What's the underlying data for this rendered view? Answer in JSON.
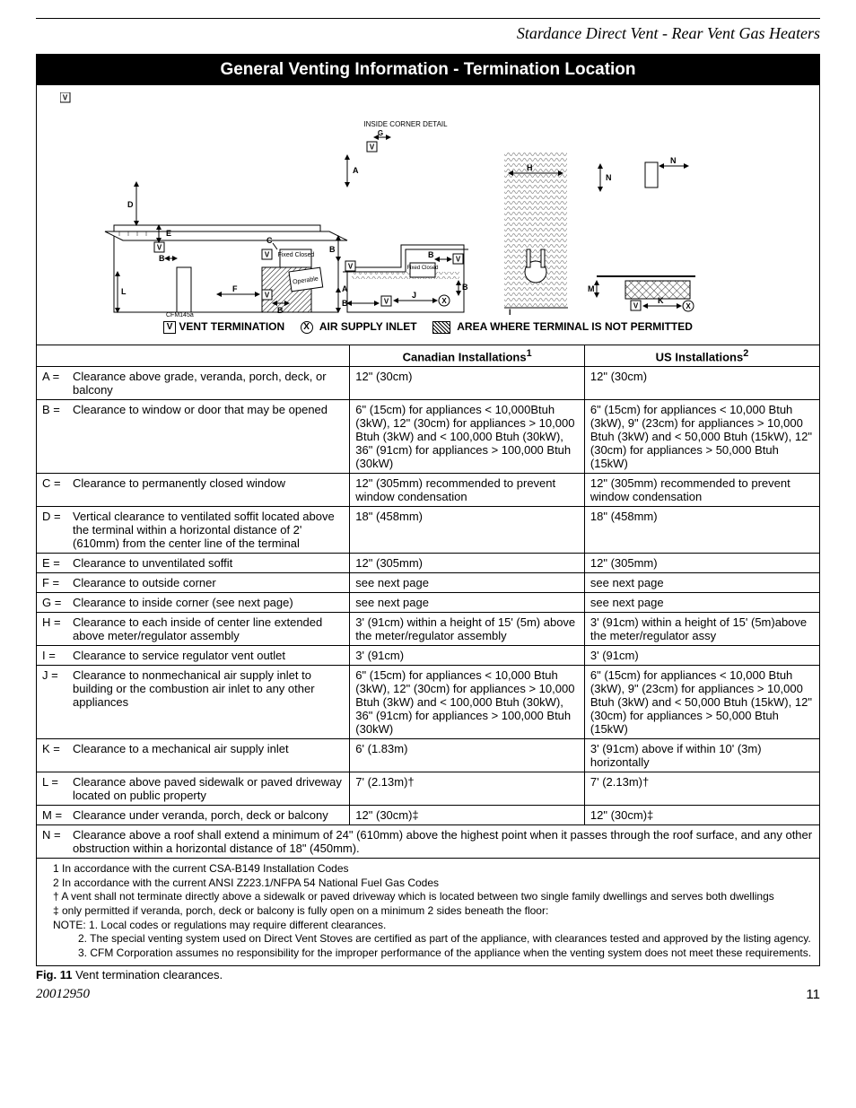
{
  "header": {
    "product_line": "Stardance Direct Vent - Rear Vent Gas Heaters"
  },
  "section": {
    "title": "General Venting Information - Termination Location"
  },
  "diagram": {
    "inside_corner_label": "INSIDE CORNER DETAIL",
    "fixed_closed": "Fixed Closed",
    "operable": "Operable",
    "ref": "CFM145a",
    "letters": {
      "A": "A",
      "B": "B",
      "C": "C",
      "D": "D",
      "E": "E",
      "F": "F",
      "G": "G",
      "H": "H",
      "I": "I",
      "J": "J",
      "K": "K",
      "L": "L",
      "M": "M",
      "N": "N",
      "V": "V",
      "X": "X"
    }
  },
  "legend": {
    "vent_termination": "VENT TERMINATION",
    "air_supply_inlet": "AIR SUPPLY INLET",
    "not_permitted": "AREA WHERE TERMINAL IS NOT PERMITTED"
  },
  "table": {
    "headers": {
      "blank": "",
      "canadian": "Canadian Installations",
      "canadian_sup": "1",
      "us": "US Installations",
      "us_sup": "2"
    },
    "rows": [
      {
        "key": "A =",
        "desc": "Clearance above grade, veranda, porch, deck, or balcony",
        "ca": "12\" (30cm)",
        "us": "12\" (30cm)"
      },
      {
        "key": "B =",
        "desc": "Clearance to window or door that may be opened",
        "ca": "6\" (15cm) for appliances < 10,000Btuh (3kW), 12\" (30cm) for appliances > 10,000 Btuh (3kW) and < 100,000 Btuh (30kW), 36\" (91cm) for appliances > 100,000 Btuh (30kW)",
        "us": "6\" (15cm) for appliances < 10,000 Btuh (3kW), 9\" (23cm) for appliances > 10,000 Btuh (3kW) and < 50,000 Btuh (15kW), 12\" (30cm) for appliances > 50,000 Btuh (15kW)"
      },
      {
        "key": "C =",
        "desc": "Clearance to permanently closed window",
        "ca": "12\" (305mm) recommended to prevent window condensation",
        "us": "12\" (305mm) recommended to prevent window condensation"
      },
      {
        "key": "D =",
        "desc": "Vertical clearance to ventilated soffit located above the terminal within a horizontal distance of 2' (610mm) from the center line of the terminal",
        "ca": "18\" (458mm)",
        "us": "18\" (458mm)"
      },
      {
        "key": "E =",
        "desc": "Clearance to unventilated soffit",
        "ca": "12\" (305mm)",
        "us": "12\" (305mm)"
      },
      {
        "key": "F =",
        "desc": "Clearance to outside corner",
        "ca": "see next page",
        "us": "see next page"
      },
      {
        "key": "G =",
        "desc": "Clearance to inside corner (see next page)",
        "ca": "see next page",
        "us": "see next page"
      },
      {
        "key": "H =",
        "desc": "Clearance to each inside of center line extended above meter/regulator assembly",
        "ca": "3' (91cm) within a height of 15' (5m) above the meter/regulator assembly",
        "us": "3' (91cm) within a height of 15' (5m)above the meter/regulator assy"
      },
      {
        "key": "I  =",
        "desc": "Clearance to service regulator vent outlet",
        "ca": "3' (91cm)",
        "us": "3' (91cm)"
      },
      {
        "key": "J =",
        "desc": "Clearance to nonmechanical air supply inlet to building or the combustion air inlet to any other appliances",
        "ca": "6\" (15cm) for appliances < 10,000 Btuh (3kW), 12\" (30cm) for appliances > 10,000 Btuh (3kW) and < 100,000 Btuh (30kW), 36\" (91cm) for appliances > 100,000 Btuh (30kW)",
        "us": "6\" (15cm) for appliances < 10,000 Btuh (3kW), 9\" (23cm) for appliances > 10,000 Btuh (3kW) and < 50,000 Btuh (15kW), 12\" (30cm) for appliances > 50,000 Btuh (15kW)"
      },
      {
        "key": "K =",
        "desc": "Clearance to a mechanical air supply inlet",
        "ca": "6' (1.83m)",
        "us": "3' (91cm) above if within 10' (3m) horizontally"
      },
      {
        "key": "L =",
        "desc": "Clearance  above paved sidewalk or paved driveway located on public property",
        "ca": "7' (2.13m)†",
        "us": "7' (2.13m)†"
      },
      {
        "key": "M =",
        "desc": "Clearance under veranda, porch, deck or balcony",
        "ca": "12\" (30cm)‡",
        "us": "12\" (30cm)‡"
      }
    ],
    "row_n": {
      "key": "N =",
      "desc": "Clearance above a roof shall extend a minimum of 24\" (610mm) above the highest point when it passes through the roof surface, and any other obstruction within a horizontal distance of 18\" (450mm)."
    }
  },
  "footnotes": {
    "f1": "1 In accordance with the current CSA-B149 Installation Codes",
    "f2": "2 In accordance with the current ANSI Z223.1/NFPA 54 National Fuel Gas Codes",
    "fdagger": "† A vent shall not terminate directly above a sidewalk or paved driveway which is located between two single family dwellings and serves both dwellings",
    "fddagger": "‡ only permitted if veranda, porch, deck or balcony is fully open on a minimum 2 sides beneath the floor:",
    "note_label": "NOTE:",
    "n1": "1. Local codes or regulations may require different clearances.",
    "n2": "2. The special venting system used on Direct Vent Stoves are certified as part of the appliance, with clearances tested and approved by the listing agency.",
    "n3": "3. CFM Corporation assumes no responsibility for the improper performance of the appliance when the venting system does not meet these requirements."
  },
  "caption": {
    "label": "Fig. 11",
    "text": " Vent termination clearances."
  },
  "footer": {
    "docnum": "20012950",
    "page": "11"
  },
  "colors": {
    "black": "#000000",
    "white": "#ffffff",
    "hatch": "#888888"
  }
}
